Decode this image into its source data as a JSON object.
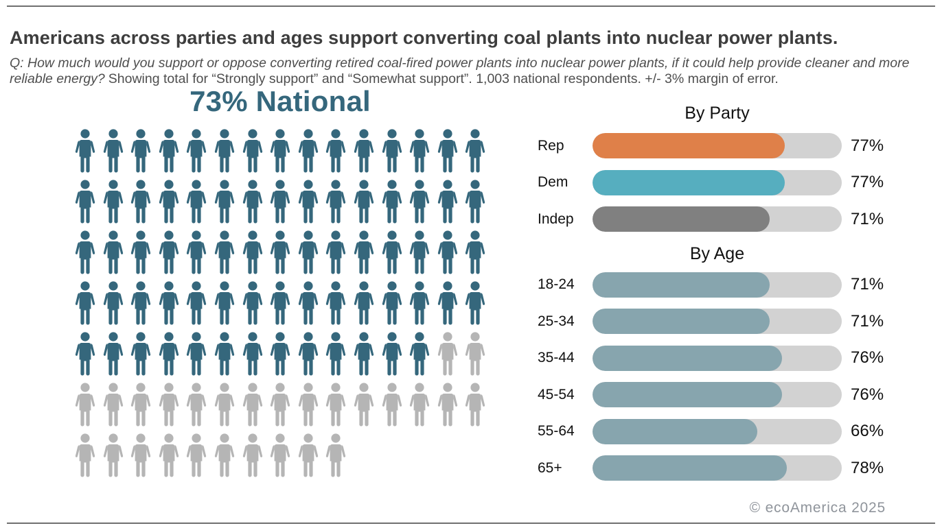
{
  "header": {
    "title": "Americans across parties and ages support converting coal plants into nuclear power plants.",
    "question_italic": "Q: How much would you support or oppose converting retired coal-fired power plants into nuclear power plants, if it could help provide cleaner and more reliable energy?",
    "methodology": "Showing total for “Strongly support” and “Somewhat support”. 1,003 national respondents. +/- 3% margin of error."
  },
  "footer": {
    "credit": "© ecoAmerica 2025"
  },
  "colors": {
    "national_teal": "#35677c",
    "pictogram_empty_gray": "#b5b5b5",
    "rep_orange": "#df8049",
    "dem_teal": "#56aebf",
    "indep_gray": "#808080",
    "age_blue_gray": "#87a5ae",
    "bar_track_gray": "#d2d2d2",
    "rule_gray": "#6f6f6f",
    "footer_gray": "#8f949b",
    "title_gray": "#3d3d3d"
  },
  "chart_data": [
    {
      "type": "pictogram",
      "title": "73% National",
      "value": 73,
      "total_icons": 100,
      "icons_per_row": 15,
      "filled_color": "#35677c",
      "empty_color": "#b5b5b5"
    },
    {
      "type": "bar",
      "title": "By Party",
      "orientation": "horizontal",
      "xlim": [
        0,
        100
      ],
      "categories": [
        "Rep",
        "Dem",
        "Indep"
      ],
      "values": [
        77,
        77,
        71
      ],
      "value_labels": [
        "77%",
        "77%",
        "71%"
      ],
      "bar_colors": [
        "#df8049",
        "#56aebf",
        "#808080"
      ],
      "track_color": "#d2d2d2"
    },
    {
      "type": "bar",
      "title": "By Age",
      "orientation": "horizontal",
      "xlim": [
        0,
        100
      ],
      "categories": [
        "18-24",
        "25-34",
        "35-44",
        "45-54",
        "55-64",
        "65+"
      ],
      "values": [
        71,
        71,
        76,
        76,
        66,
        78
      ],
      "value_labels": [
        "71%",
        "71%",
        "76%",
        "76%",
        "66%",
        "78%"
      ],
      "bar_color": "#87a5ae",
      "track_color": "#d2d2d2"
    }
  ]
}
